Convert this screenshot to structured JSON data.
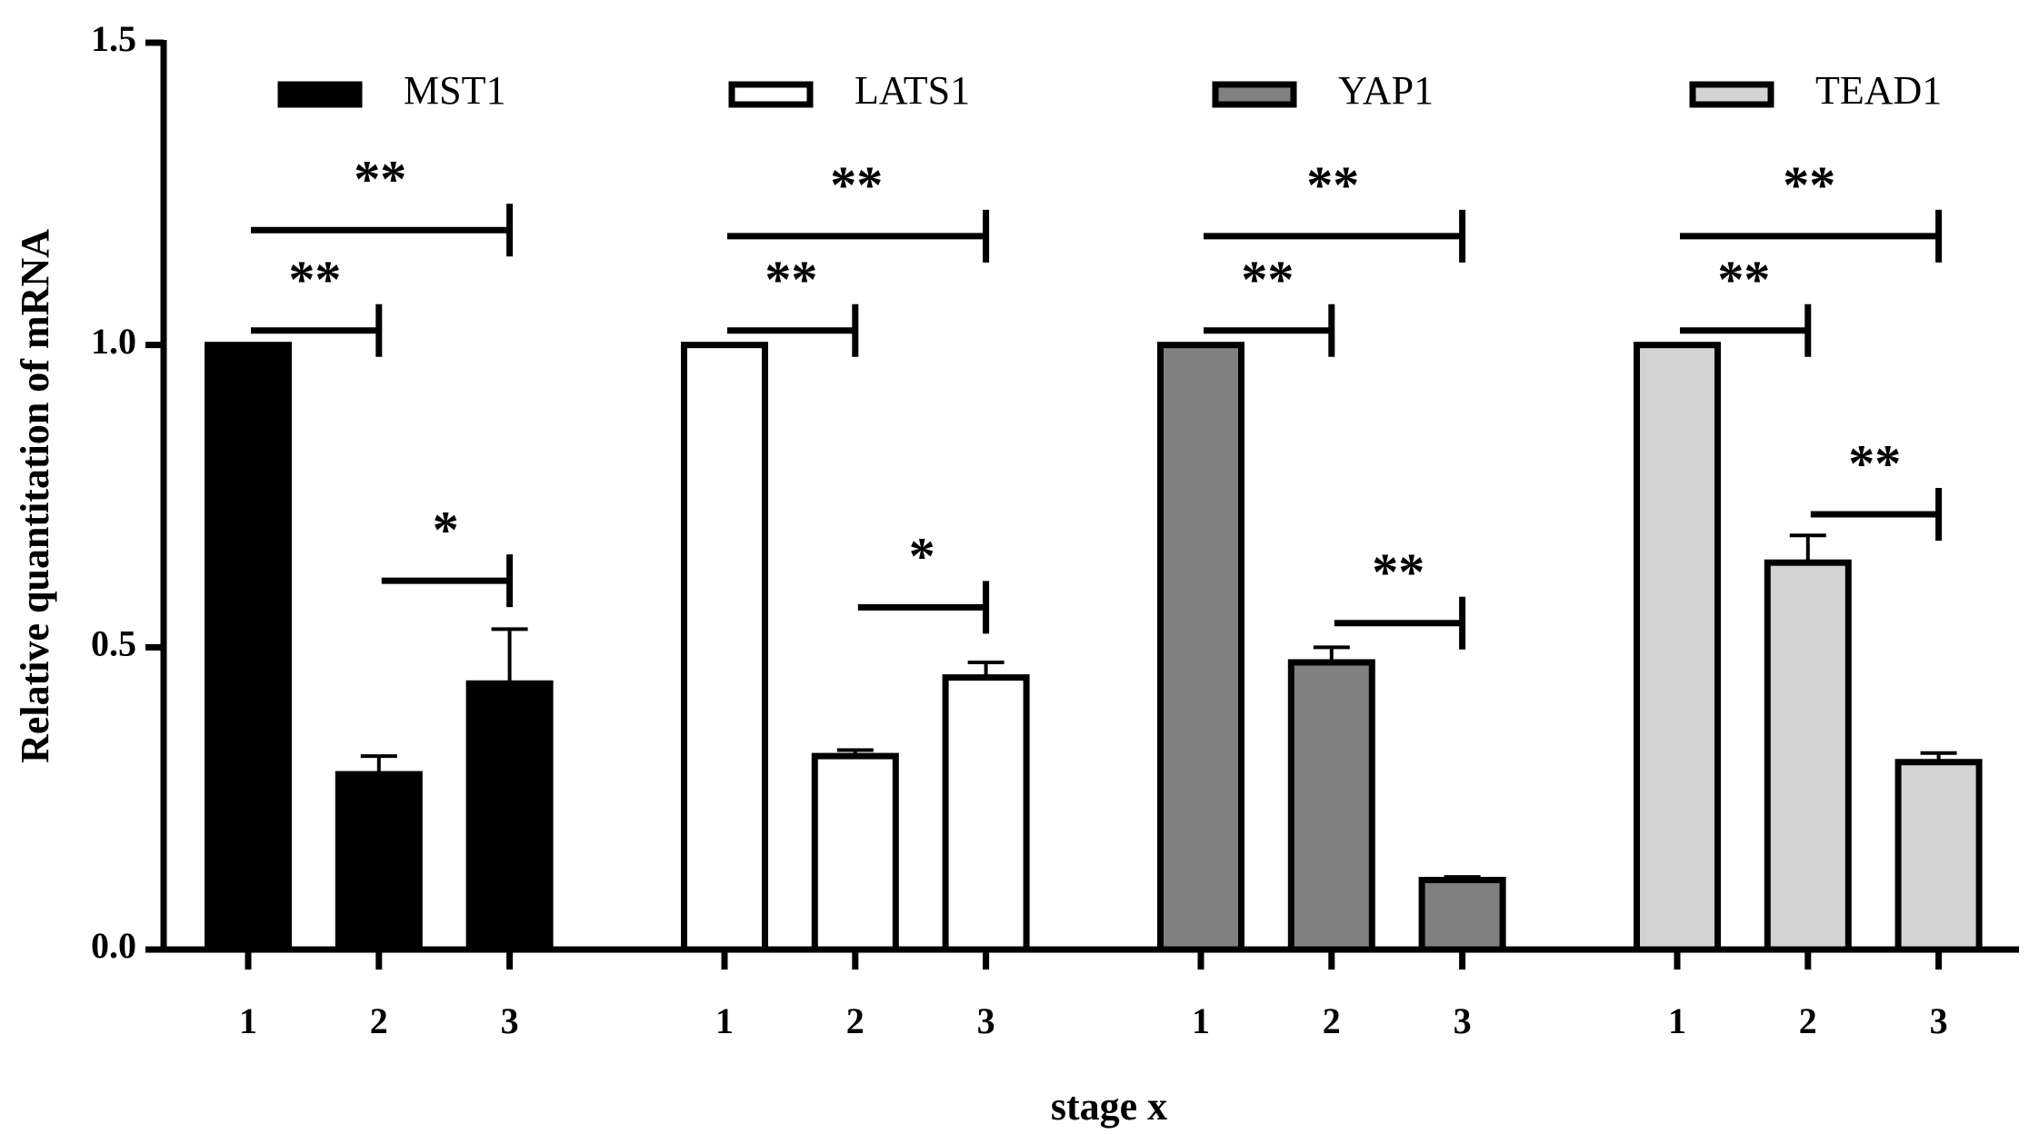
{
  "chart_data": {
    "type": "bar",
    "y_label": "Relative quantitation of mRNA",
    "x_label": "stage x",
    "categories": [
      "1",
      "2",
      "3"
    ],
    "series": [
      {
        "name": "MST1",
        "color": "#000000",
        "values": [
          1.0,
          0.29,
          0.44
        ],
        "errors": [
          null,
          0.03,
          0.09
        ],
        "significance": [
          "**",
          "**",
          "*"
        ]
      },
      {
        "name": "LATS1",
        "color": "#ffffff",
        "values": [
          1.0,
          0.32,
          0.45
        ],
        "errors": [
          null,
          0.01,
          0.025
        ],
        "significance": [
          "**",
          "**",
          "*"
        ]
      },
      {
        "name": "YAP1",
        "color": "#808080",
        "values": [
          1.0,
          0.475,
          0.115
        ],
        "errors": [
          null,
          0.025,
          0.005
        ],
        "significance": [
          "**",
          "**",
          "**"
        ]
      },
      {
        "name": "TEAD1",
        "color": "#d3d3d3",
        "values": [
          1.0,
          0.64,
          0.31
        ],
        "errors": [
          null,
          0.045,
          0.015
        ],
        "significance": [
          "**",
          "**",
          "**"
        ]
      }
    ],
    "ylim": [
      0,
      1.5
    ],
    "yticks": [
      {
        "value": 0,
        "label": "0.0"
      },
      {
        "value": 0.5,
        "label": "0.5"
      },
      {
        "value": 1,
        "label": "1.0"
      },
      {
        "value": 1.5,
        "label": "1.5"
      }
    ],
    "legend": "top"
  }
}
